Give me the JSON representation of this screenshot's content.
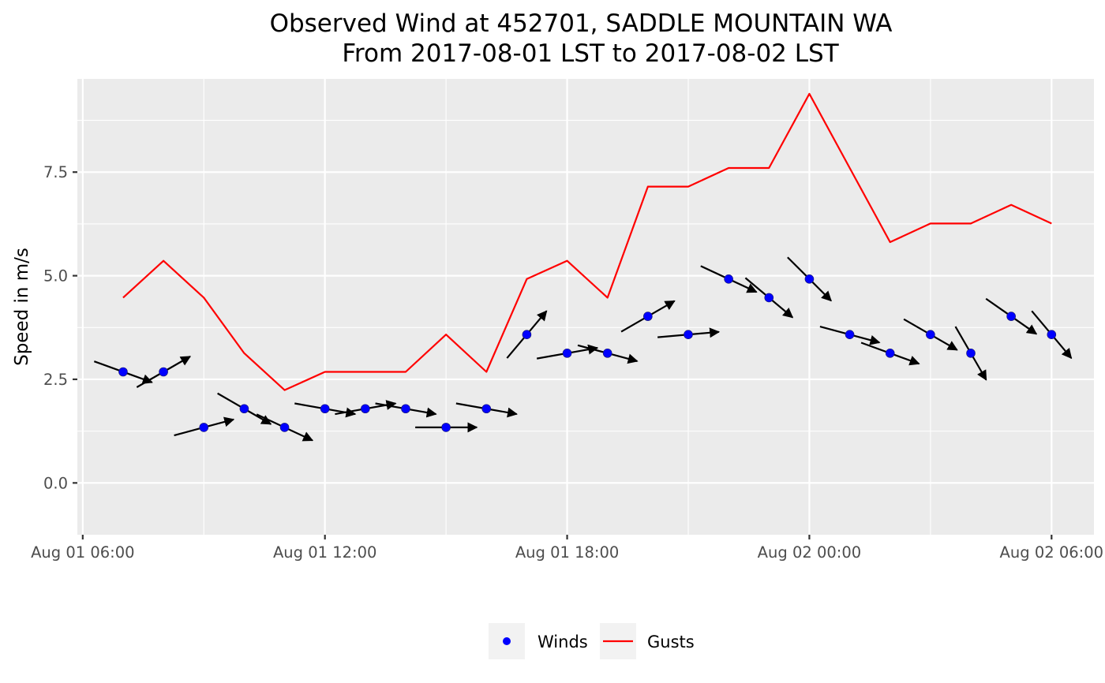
{
  "chart_data": {
    "type": "line",
    "title": "Observed Wind at 452701, SADDLE MOUNTAIN WA",
    "subtitle": "From 2017-08-01 LST to 2017-08-02 LST",
    "xlabel": "",
    "ylabel": "Speed in m/s",
    "x_ticks": [
      "Aug 01 06:00",
      "Aug 01 12:00",
      "Aug 01 18:00",
      "Aug 02 00:00",
      "Aug 02 06:00"
    ],
    "y_ticks": [
      "0.0",
      "2.5",
      "5.0",
      "7.5"
    ],
    "ylim": [
      -1.25,
      9.75
    ],
    "grid": true,
    "legend_position": "bottom",
    "series": [
      {
        "name": "Winds",
        "kind": "points-with-direction-arrows",
        "color": "#0000ff",
        "x": [
          "2017-08-01 07:00",
          "2017-08-01 08:00",
          "2017-08-01 09:00",
          "2017-08-01 10:00",
          "2017-08-01 11:00",
          "2017-08-01 12:00",
          "2017-08-01 13:00",
          "2017-08-01 14:00",
          "2017-08-01 15:00",
          "2017-08-01 16:00",
          "2017-08-01 17:00",
          "2017-08-01 18:00",
          "2017-08-01 19:00",
          "2017-08-01 20:00",
          "2017-08-01 21:00",
          "2017-08-01 22:00",
          "2017-08-01 23:00",
          "2017-08-02 00:00",
          "2017-08-02 01:00",
          "2017-08-02 02:00",
          "2017-08-02 03:00",
          "2017-08-02 04:00",
          "2017-08-02 05:00",
          "2017-08-02 06:00"
        ],
        "values": [
          2.68,
          2.68,
          1.34,
          1.79,
          1.34,
          1.79,
          1.79,
          1.79,
          1.34,
          1.79,
          3.58,
          3.13,
          3.13,
          4.02,
          3.58,
          4.92,
          4.47,
          4.92,
          3.58,
          3.13,
          3.58,
          3.13,
          4.02,
          3.58
        ],
        "arrow_toward_deg": [
          110,
          60,
          75,
          120,
          115,
          100,
          80,
          100,
          90,
          100,
          40,
          80,
          105,
          60,
          85,
          115,
          130,
          135,
          105,
          110,
          120,
          150,
          125,
          140
        ]
      },
      {
        "name": "Gusts",
        "kind": "line",
        "color": "#ff0000",
        "x": [
          "2017-08-01 07:00",
          "2017-08-01 08:00",
          "2017-08-01 09:00",
          "2017-08-01 10:00",
          "2017-08-01 11:00",
          "2017-08-01 12:00",
          "2017-08-01 13:00",
          "2017-08-01 14:00",
          "2017-08-01 15:00",
          "2017-08-01 16:00",
          "2017-08-01 17:00",
          "2017-08-01 18:00",
          "2017-08-01 19:00",
          "2017-08-01 20:00",
          "2017-08-01 21:00",
          "2017-08-01 22:00",
          "2017-08-01 23:00",
          "2017-08-02 00:00",
          "2017-08-02 01:00",
          "2017-08-02 02:00",
          "2017-08-02 03:00",
          "2017-08-02 04:00",
          "2017-08-02 05:00",
          "2017-08-02 06:00"
        ],
        "values": [
          4.47,
          5.36,
          4.47,
          3.13,
          2.24,
          2.68,
          2.68,
          2.68,
          3.58,
          2.68,
          4.92,
          5.36,
          4.47,
          7.15,
          7.15,
          7.6,
          7.6,
          9.39,
          7.6,
          5.81,
          6.26,
          6.26,
          6.71,
          6.26
        ]
      }
    ],
    "colors": {
      "panel_background": "#ebebeb",
      "grid": "#ffffff",
      "arrow": "#000000",
      "winds": "#0000ff",
      "gusts": "#ff0000"
    }
  }
}
